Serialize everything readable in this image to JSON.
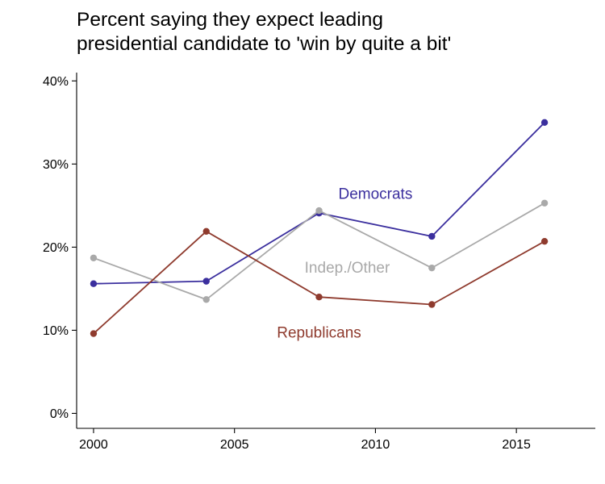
{
  "chart_data": {
    "type": "line",
    "title_lines": [
      "Percent saying they expect leading",
      "presidential candidate to 'win by quite a bit'"
    ],
    "xlabel": "",
    "ylabel": "",
    "x": [
      2000,
      2004,
      2008,
      2012,
      2016
    ],
    "xticks": [
      2000,
      2005,
      2010,
      2015
    ],
    "xlim": [
      1999.4,
      2017.8
    ],
    "yticks": [
      "0%",
      "10%",
      "20%",
      "30%",
      "40%"
    ],
    "ytick_values": [
      0,
      10,
      20,
      30,
      40
    ],
    "ylim": [
      -1.8,
      41
    ],
    "grid": false,
    "legend": "direct-labels",
    "series": [
      {
        "name": "Democrats",
        "color": "#3b2f9e",
        "values": [
          15.6,
          15.9,
          24.1,
          21.3,
          35.0
        ],
        "label_at": [
          2010,
          26.5
        ]
      },
      {
        "name": "Indep./Other",
        "color": "#a9a9a9",
        "values": [
          18.7,
          13.7,
          24.4,
          17.5,
          25.3
        ],
        "label_at": [
          2009,
          17.6
        ]
      },
      {
        "name": "Republicans",
        "color": "#8f3b2e",
        "values": [
          9.6,
          21.9,
          14.0,
          13.1,
          20.7
        ],
        "label_at": [
          2008,
          9.8
        ]
      }
    ]
  }
}
